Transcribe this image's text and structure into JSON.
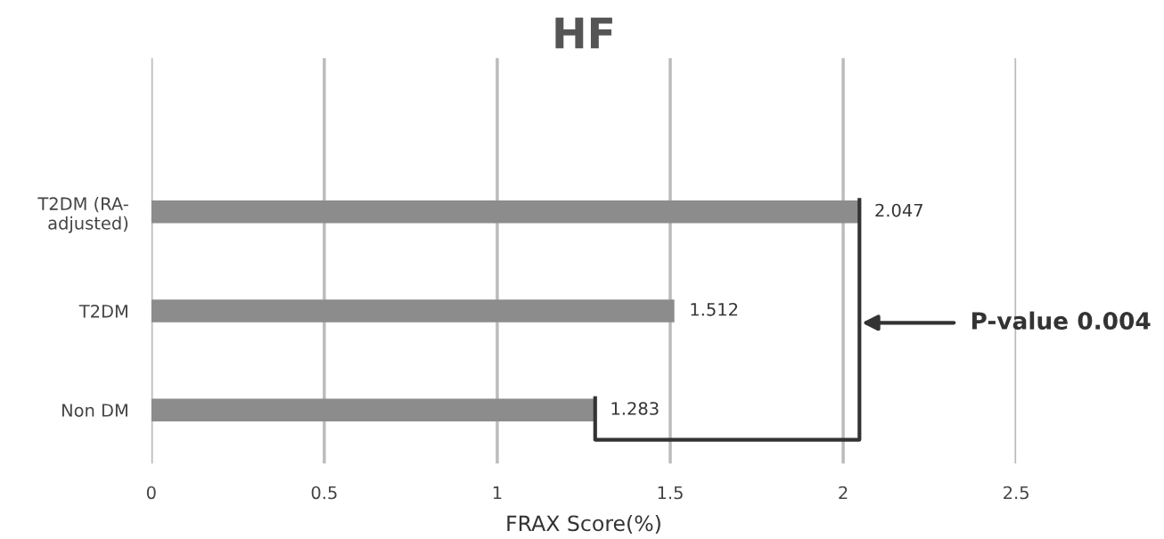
{
  "chart_data": {
    "type": "bar",
    "orientation": "horizontal",
    "title": "HF",
    "xlabel": "FRAX Score(%)",
    "categories": [
      "T2DM (RA-\nadjusted)",
      "T2DM",
      "Non DM"
    ],
    "values": [
      2.047,
      1.512,
      1.283
    ],
    "color": "#8c8c8c",
    "xlim": [
      0,
      2.5
    ],
    "xticks": [
      0,
      0.5,
      1,
      1.5,
      2,
      2.5
    ],
    "grid": "x",
    "data_labels": true,
    "annotations": [
      "P-value 0.004"
    ]
  }
}
